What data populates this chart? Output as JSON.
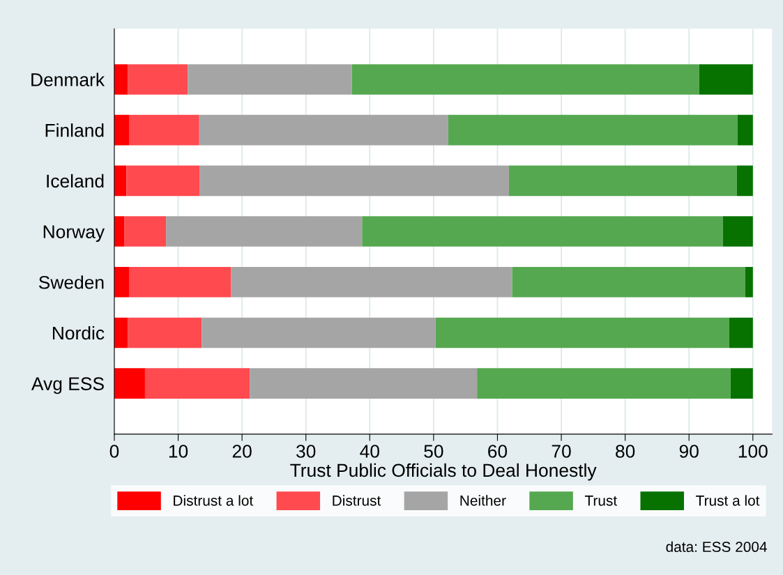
{
  "chart_data": {
    "type": "bar",
    "orientation": "horizontal",
    "stacked": true,
    "xlabel": "Trust Public Officials to Deal Honestly",
    "categories": [
      "Denmark",
      "Finland",
      "Iceland",
      "Norway",
      "Sweden",
      "Nordic",
      "Avg ESS"
    ],
    "series": [
      {
        "name": "Distrust a lot",
        "color": "#ff0000",
        "values": [
          2.1,
          2.3,
          1.9,
          1.6,
          2.3,
          2.1,
          4.8
        ]
      },
      {
        "name": "Distrust",
        "color": "#ff4a50",
        "values": [
          9.4,
          11.0,
          11.5,
          6.5,
          16.0,
          11.6,
          16.4
        ]
      },
      {
        "name": "Neither",
        "color": "#a5a5a5",
        "values": [
          25.7,
          39.0,
          48.4,
          30.7,
          44.0,
          36.6,
          35.6
        ]
      },
      {
        "name": "Trust",
        "color": "#55a850",
        "values": [
          54.4,
          45.3,
          35.7,
          56.5,
          36.5,
          46.0,
          39.7
        ]
      },
      {
        "name": "Trust a lot",
        "color": "#077200",
        "values": [
          8.4,
          2.4,
          2.5,
          4.7,
          1.2,
          3.7,
          3.5
        ]
      }
    ],
    "xlim": [
      0,
      103
    ],
    "xticks": [
      0,
      10,
      20,
      30,
      40,
      50,
      60,
      70,
      80,
      90,
      100
    ],
    "grid": "x",
    "legend": "bottom",
    "annotations": [
      "data: ESS 2004"
    ]
  }
}
